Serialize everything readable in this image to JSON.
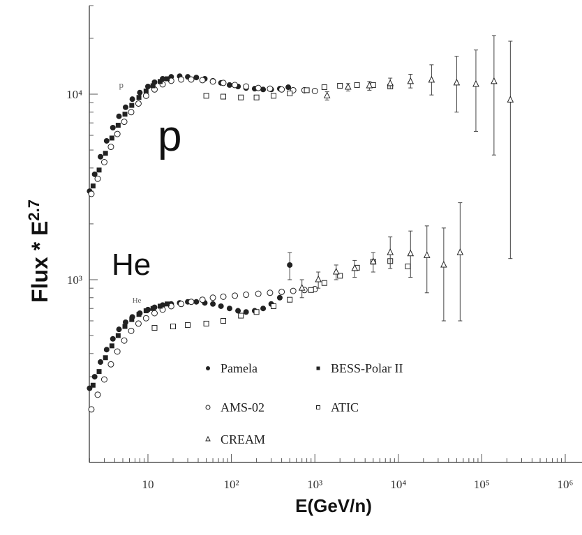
{
  "chart_data": {
    "type": "scatter",
    "title": "",
    "xlabel": "E(GeV/n)",
    "ylabel": "Flux * E",
    "ylabel_power": "2.7",
    "x_scale": "log",
    "y_scale": "log",
    "xlim": [
      2,
      1000000
    ],
    "ylim": [
      130,
      30000
    ],
    "x_ticks": [
      {
        "value": 10,
        "label": "10"
      },
      {
        "value": 100,
        "label": "10²"
      },
      {
        "value": 1000,
        "label": "10³"
      },
      {
        "value": 10000,
        "label": "10⁴"
      },
      {
        "value": 100000,
        "label": "10⁵"
      },
      {
        "value": 1000000,
        "label": "10⁶"
      }
    ],
    "y_ticks": [
      {
        "value": 1000,
        "label": "10³"
      },
      {
        "value": 10000,
        "label": "10⁴"
      }
    ],
    "grid": false,
    "legend_position": "bottom-center",
    "annotations": [
      {
        "text": "p",
        "size": "large"
      },
      {
        "text": "He",
        "size": "large"
      },
      {
        "text": "p",
        "size": "small"
      },
      {
        "text": "He",
        "size": "small"
      }
    ],
    "series": [
      {
        "name": "Pamela",
        "species": "p",
        "marker": "filled-circle",
        "x": [
          2,
          2.3,
          2.7,
          3.2,
          3.8,
          4.5,
          5.4,
          6.5,
          8,
          10,
          12,
          15,
          19,
          24,
          30,
          38,
          48,
          60,
          75,
          95,
          120,
          150,
          190,
          240,
          300,
          380,
          480
        ],
        "y": [
          3000,
          3700,
          4600,
          5600,
          6600,
          7600,
          8500,
          9400,
          10200,
          11000,
          11600,
          12100,
          12400,
          12500,
          12400,
          12300,
          12100,
          11800,
          11500,
          11200,
          11000,
          10800,
          10700,
          10600,
          10600,
          10700,
          10900
        ]
      },
      {
        "name": "AMS-02",
        "species": "p",
        "marker": "open-circle",
        "x": [
          2.1,
          2.5,
          3,
          3.6,
          4.3,
          5.2,
          6.3,
          7.7,
          9.5,
          12,
          15,
          19,
          25,
          33,
          45,
          60,
          80,
          110,
          150,
          210,
          290,
          400,
          550,
          750,
          1000
        ],
        "y": [
          2900,
          3500,
          4300,
          5200,
          6100,
          7100,
          8000,
          8900,
          9800,
          10600,
          11300,
          11800,
          12000,
          12000,
          11900,
          11700,
          11500,
          11200,
          11000,
          10800,
          10700,
          10600,
          10500,
          10500,
          10400
        ]
      },
      {
        "name": "BESS-Polar II",
        "species": "p",
        "marker": "filled-square",
        "x": [
          2.2,
          2.6,
          3.1,
          3.7,
          4.4,
          5.3,
          6.4,
          7.8,
          9.5,
          11.5,
          14,
          17
        ],
        "y": [
          3200,
          3900,
          4800,
          5800,
          6800,
          7800,
          8700,
          9600,
          10400,
          11100,
          11700,
          12100
        ]
      },
      {
        "name": "ATIC",
        "species": "p",
        "marker": "open-square",
        "x": [
          50,
          80,
          130,
          200,
          320,
          500,
          800,
          1300,
          2000,
          3200,
          5000,
          8000
        ],
        "y": [
          9800,
          9700,
          9600,
          9600,
          9800,
          10100,
          10500,
          10900,
          11100,
          11200,
          11200,
          11000
        ]
      },
      {
        "name": "CREAM",
        "species": "p",
        "marker": "open-triangle",
        "x": [
          1400,
          2500,
          4500,
          8000,
          14000,
          25000,
          50000,
          85000,
          140000,
          220000
        ],
        "y": [
          9800,
          10900,
          11100,
          11400,
          11700,
          11900,
          11500,
          11300,
          11700,
          9300
        ],
        "y_err_low": [
          500,
          500,
          600,
          700,
          900,
          2000,
          3500,
          5000,
          7000,
          8000
        ],
        "y_err_high": [
          500,
          500,
          600,
          800,
          1100,
          2500,
          4500,
          6000,
          9000,
          10000
        ]
      },
      {
        "name": "Pamela",
        "species": "He",
        "marker": "filled-circle",
        "x": [
          2,
          2.3,
          2.7,
          3.2,
          3.8,
          4.5,
          5.4,
          6.5,
          8,
          10,
          12,
          15,
          19,
          24,
          30,
          38,
          48,
          60,
          75,
          95,
          120,
          150,
          190,
          240,
          300,
          380,
          500
        ],
        "y": [
          260,
          300,
          360,
          420,
          480,
          540,
          590,
          630,
          660,
          690,
          710,
          730,
          740,
          750,
          760,
          760,
          750,
          740,
          720,
          700,
          680,
          670,
          680,
          700,
          740,
          800,
          1200
        ],
        "y_err_low": [
          0,
          0,
          0,
          0,
          0,
          0,
          0,
          0,
          0,
          0,
          0,
          0,
          0,
          0,
          0,
          0,
          0,
          0,
          0,
          0,
          0,
          0,
          0,
          0,
          0,
          0,
          200
        ],
        "y_err_high": [
          0,
          0,
          0,
          0,
          0,
          0,
          0,
          0,
          0,
          0,
          0,
          0,
          0,
          0,
          0,
          0,
          0,
          0,
          0,
          0,
          0,
          0,
          0,
          0,
          0,
          0,
          200
        ]
      },
      {
        "name": "AMS-02",
        "species": "He",
        "marker": "open-circle",
        "x": [
          2.1,
          2.5,
          3,
          3.6,
          4.3,
          5.2,
          6.3,
          7.7,
          9.5,
          12,
          15,
          19,
          25,
          33,
          45,
          60,
          80,
          110,
          150,
          210,
          290,
          400,
          550,
          750,
          1000
        ],
        "y": [
          200,
          240,
          290,
          350,
          410,
          470,
          530,
          580,
          620,
          660,
          690,
          720,
          740,
          760,
          780,
          800,
          810,
          820,
          830,
          840,
          850,
          860,
          870,
          880,
          890
        ]
      },
      {
        "name": "BESS-Polar II",
        "species": "He",
        "marker": "filled-square",
        "x": [
          2.2,
          2.6,
          3.1,
          3.7,
          4.4,
          5.3,
          6.4,
          7.8,
          9.5,
          11.5,
          14,
          17
        ],
        "y": [
          270,
          320,
          380,
          440,
          500,
          560,
          610,
          650,
          680,
          700,
          720,
          740
        ]
      },
      {
        "name": "ATIC",
        "species": "He",
        "marker": "open-square",
        "x": [
          12,
          20,
          30,
          50,
          80,
          130,
          200,
          320,
          500,
          900,
          1300,
          2000,
          3200,
          5000,
          8000,
          13000
        ],
        "y": [
          550,
          560,
          570,
          580,
          600,
          640,
          670,
          720,
          780,
          880,
          960,
          1050,
          1160,
          1250,
          1260,
          1180
        ]
      },
      {
        "name": "CREAM",
        "species": "He",
        "marker": "open-triangle",
        "x": [
          700,
          1100,
          1800,
          3000,
          5000,
          8000,
          14000,
          22000,
          35000,
          55000
        ],
        "y": [
          900,
          1000,
          1100,
          1150,
          1250,
          1400,
          1380,
          1350,
          1200,
          1400
        ],
        "y_err_low": [
          100,
          100,
          100,
          120,
          150,
          250,
          350,
          500,
          600,
          800
        ],
        "y_err_high": [
          100,
          100,
          100,
          120,
          150,
          300,
          450,
          600,
          700,
          1200
        ]
      }
    ],
    "legend": [
      {
        "label": "Pamela",
        "marker": "filled-circle"
      },
      {
        "label": "BESS-Polar II",
        "marker": "filled-square"
      },
      {
        "label": "AMS-02",
        "marker": "open-circle"
      },
      {
        "label": "ATIC",
        "marker": "open-square"
      },
      {
        "label": "CREAM",
        "marker": "open-triangle"
      }
    ],
    "colors": {
      "ink": "#222222",
      "axis": "#555555",
      "background": "#ffffff"
    }
  }
}
